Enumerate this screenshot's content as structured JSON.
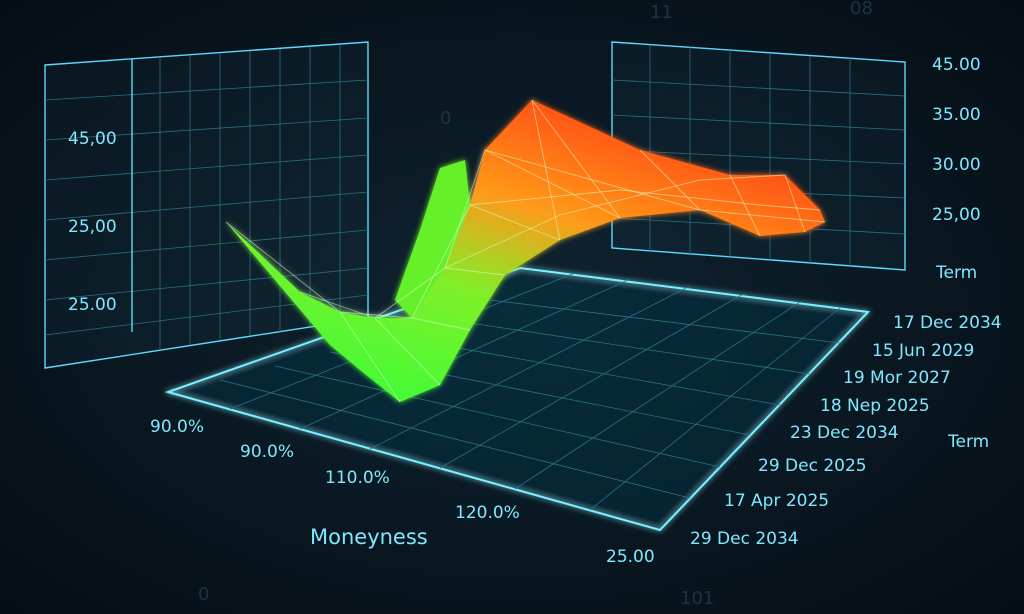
{
  "background_digits": [
    "11",
    "0",
    "08",
    "0",
    "101"
  ],
  "left_panel": {
    "labels": [
      "45,00",
      "25,00",
      "25.00"
    ]
  },
  "right_panel": {
    "labels": [
      "45.00",
      "35.00",
      "30.00",
      "25,00",
      "Term"
    ]
  },
  "floor": {
    "moneyness_labels": [
      "90.0%",
      "90.0%",
      "110.0%",
      "120.0%"
    ],
    "moneyness_title": "Moneyness",
    "corner_label": "25.00",
    "term_labels": [
      "17 Dec 2034",
      "15 Jun 2029",
      "19 Mor 2027",
      "18 Nep 2025",
      "23 Dec 2034",
      "29 Dec 2025",
      "17 Apr 2025",
      "29 Dec 2034"
    ],
    "term_title": "Term"
  }
}
